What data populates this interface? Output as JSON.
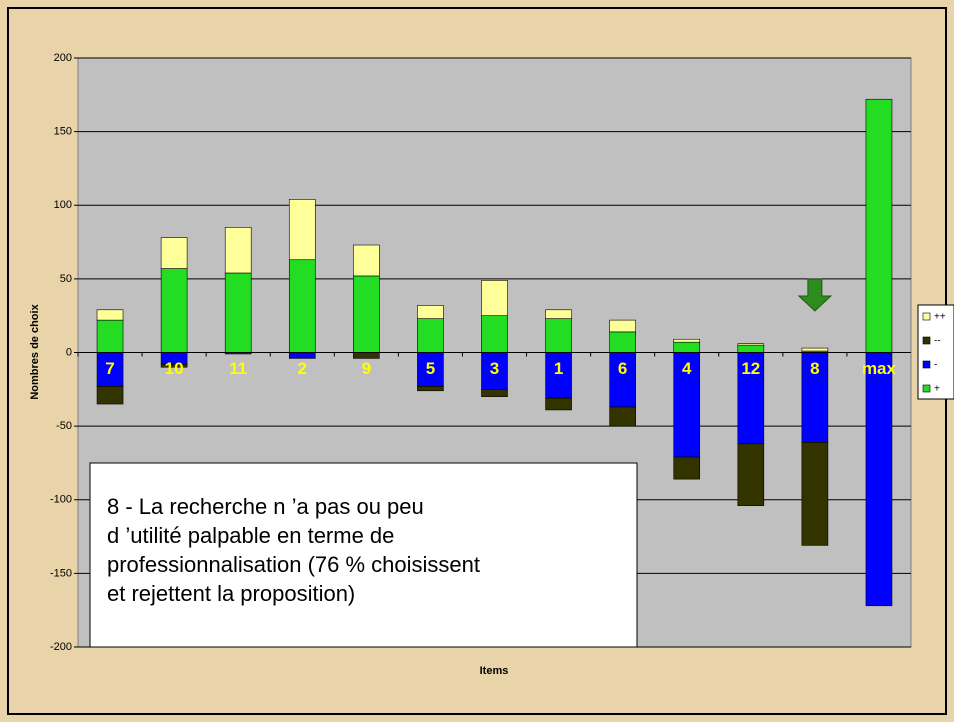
{
  "chart_data": {
    "type": "bar",
    "stacked": true,
    "categories": [
      "7",
      "10",
      "11",
      "2",
      "9",
      "5",
      "3",
      "1",
      "6",
      "4",
      "12",
      "8",
      "max"
    ],
    "series": [
      {
        "name": "++",
        "color": "#ffff99",
        "values": [
          7,
          21,
          31,
          41,
          21,
          9,
          24,
          6,
          8,
          2,
          1,
          2,
          0
        ]
      },
      {
        "name": "--",
        "color": "#333300",
        "values": [
          -12,
          -2,
          -1,
          0,
          -4,
          -3,
          -5,
          -8,
          -13,
          -15,
          -42,
          -70,
          0
        ]
      },
      {
        "name": "-",
        "color": "#0000ff",
        "values": [
          -23,
          -8,
          0,
          -4,
          0,
          -23,
          -25,
          -31,
          -37,
          -71,
          -62,
          -61,
          -172
        ]
      },
      {
        "name": "+",
        "color": "#22dd22",
        "values": [
          22,
          57,
          54,
          63,
          52,
          23,
          25,
          23,
          14,
          7,
          5,
          1,
          172
        ]
      }
    ],
    "ylim": [
      -200,
      200
    ],
    "yticks": [
      -200,
      -150,
      -100,
      -50,
      0,
      50,
      100,
      150,
      200
    ],
    "grid": true,
    "ylabel": "Nombres de choix",
    "xlabel": "Items",
    "legend": "right",
    "annotation": [
      "8 - La recherche n ’a pas ou peu",
      "d ’utilité palpable en terme de",
      "professionnalisation (76 % choisissent",
      "et rejettent la proposition)"
    ]
  }
}
